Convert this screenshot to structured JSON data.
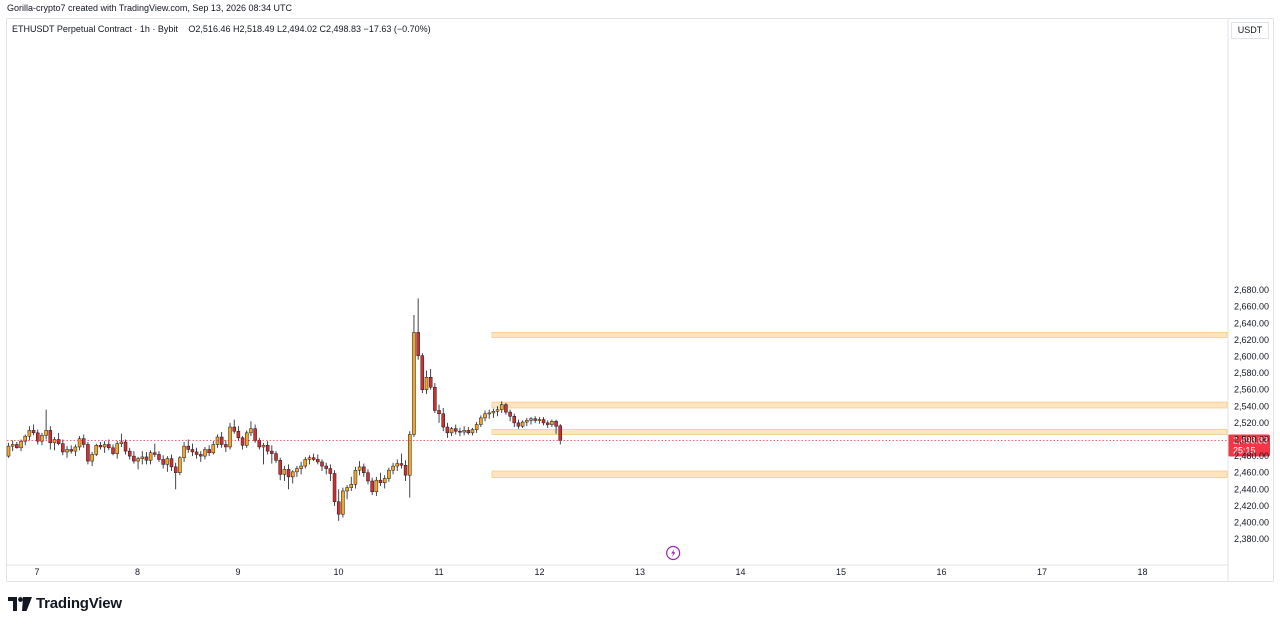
{
  "header": {
    "credit": "Gorilla-crypto7 created with TradingView.com, Sep 13, 2026 08:34 UTC"
  },
  "legend": {
    "symbol": "ETHUSDT Perpetual Contract · 1h · Bybit",
    "ohlc": "O2,516.46  H2,518.49  L2,494.02  C2,498.83  −17.63 (−0.70%)"
  },
  "axis_unit": "USDT",
  "branding": {
    "logo_text": "TradingView",
    "logo_icon": "tradingview-logo-icon"
  },
  "colors": {
    "up_body": "#f5a623",
    "down_body": "#d32f2f",
    "wick": "#131722",
    "zone_fill": "#fde5c0",
    "zone_stroke": "#f7c98a",
    "last_price_bg": "#f23645",
    "price_line": "#f23645",
    "news_icon": "#9c27b0"
  },
  "chart_data": {
    "type": "candlestick",
    "title": "",
    "symbol": "ETHUSDT Perpetual Contract",
    "interval": "1h",
    "exchange": "Bybit",
    "ylim": [
      2370,
      2690
    ],
    "y_ticks": [
      "2,380.00",
      "2,400.00",
      "2,420.00",
      "2,440.00",
      "2,460.00",
      "2,480.00",
      "2,500.00",
      "2,520.00",
      "2,540.00",
      "2,560.00",
      "2,580.00",
      "2,600.00",
      "2,620.00",
      "2,640.00",
      "2,660.00",
      "2,680.00"
    ],
    "y_tick_values": [
      2380,
      2400,
      2420,
      2440,
      2460,
      2480,
      2500,
      2520,
      2540,
      2560,
      2580,
      2600,
      2620,
      2640,
      2660,
      2680
    ],
    "x_ticks": [
      "7",
      "8",
      "9",
      "10",
      "11",
      "12",
      "13",
      "14",
      "15",
      "16",
      "17",
      "18"
    ],
    "x_tick_days": [
      7,
      8,
      9,
      10,
      11,
      12,
      13,
      14,
      15,
      16,
      17,
      18
    ],
    "x_range_days": [
      6.7,
      18.87
    ],
    "last_price": {
      "label": "2,498.83",
      "value": 2498.83,
      "countdown": "25:15"
    },
    "zones": [
      {
        "low": 2623,
        "high": 2629
      },
      {
        "low": 2538,
        "high": 2545
      },
      {
        "low": 2506,
        "high": 2512
      },
      {
        "low": 2454,
        "high": 2462
      }
    ],
    "news_marker_day": 13.33,
    "news_icon": "lightning-icon",
    "candles": [
      [
        2480,
        2496,
        2478,
        2492
      ],
      [
        2492,
        2499,
        2486,
        2494
      ],
      [
        2494,
        2497,
        2489,
        2490
      ],
      [
        2490,
        2500,
        2486,
        2498
      ],
      [
        2498,
        2506,
        2493,
        2504
      ],
      [
        2504,
        2516,
        2499,
        2511
      ],
      [
        2511,
        2518,
        2505,
        2508
      ],
      [
        2508,
        2512,
        2494,
        2498
      ],
      [
        2498,
        2508,
        2493,
        2505
      ],
      [
        2505,
        2536,
        2500,
        2511
      ],
      [
        2511,
        2516,
        2488,
        2496
      ],
      [
        2496,
        2503,
        2487,
        2500
      ],
      [
        2500,
        2508,
        2493,
        2495
      ],
      [
        2495,
        2500,
        2481,
        2485
      ],
      [
        2485,
        2492,
        2478,
        2488
      ],
      [
        2488,
        2493,
        2483,
        2486
      ],
      [
        2486,
        2494,
        2480,
        2491
      ],
      [
        2491,
        2504,
        2487,
        2501
      ],
      [
        2501,
        2506,
        2490,
        2494
      ],
      [
        2494,
        2497,
        2470,
        2474
      ],
      [
        2474,
        2485,
        2468,
        2482
      ],
      [
        2482,
        2495,
        2480,
        2493
      ],
      [
        2493,
        2497,
        2488,
        2491
      ],
      [
        2491,
        2498,
        2484,
        2494
      ],
      [
        2494,
        2500,
        2487,
        2490
      ],
      [
        2490,
        2494,
        2481,
        2483
      ],
      [
        2483,
        2498,
        2477,
        2495
      ],
      [
        2495,
        2507,
        2491,
        2497
      ],
      [
        2497,
        2500,
        2482,
        2486
      ],
      [
        2486,
        2490,
        2476,
        2480
      ],
      [
        2480,
        2486,
        2471,
        2474
      ],
      [
        2474,
        2479,
        2464,
        2477
      ],
      [
        2477,
        2486,
        2470,
        2479
      ],
      [
        2479,
        2485,
        2470,
        2475
      ],
      [
        2475,
        2487,
        2470,
        2484
      ],
      [
        2484,
        2495,
        2479,
        2482
      ],
      [
        2482,
        2486,
        2473,
        2476
      ],
      [
        2476,
        2481,
        2465,
        2470
      ],
      [
        2470,
        2480,
        2461,
        2477
      ],
      [
        2477,
        2482,
        2462,
        2467
      ],
      [
        2467,
        2472,
        2440,
        2460
      ],
      [
        2460,
        2480,
        2457,
        2478
      ],
      [
        2478,
        2497,
        2473,
        2492
      ],
      [
        2492,
        2500,
        2484,
        2488
      ],
      [
        2488,
        2495,
        2480,
        2485
      ],
      [
        2485,
        2490,
        2477,
        2482
      ],
      [
        2482,
        2486,
        2473,
        2480
      ],
      [
        2480,
        2491,
        2476,
        2488
      ],
      [
        2488,
        2493,
        2480,
        2484
      ],
      [
        2484,
        2498,
        2482,
        2494
      ],
      [
        2494,
        2506,
        2490,
        2503
      ],
      [
        2503,
        2509,
        2490,
        2494
      ],
      [
        2494,
        2499,
        2485,
        2491
      ],
      [
        2491,
        2520,
        2488,
        2515
      ],
      [
        2515,
        2524,
        2507,
        2510
      ],
      [
        2510,
        2516,
        2498,
        2502
      ],
      [
        2502,
        2504,
        2488,
        2493
      ],
      [
        2493,
        2511,
        2490,
        2508
      ],
      [
        2508,
        2522,
        2504,
        2513
      ],
      [
        2513,
        2518,
        2496,
        2499
      ],
      [
        2499,
        2502,
        2488,
        2491
      ],
      [
        2491,
        2496,
        2470,
        2493
      ],
      [
        2493,
        2498,
        2482,
        2486
      ],
      [
        2486,
        2493,
        2471,
        2483
      ],
      [
        2483,
        2486,
        2472,
        2475
      ],
      [
        2475,
        2478,
        2451,
        2458
      ],
      [
        2458,
        2468,
        2450,
        2464
      ],
      [
        2464,
        2470,
        2440,
        2455
      ],
      [
        2455,
        2463,
        2447,
        2461
      ],
      [
        2461,
        2468,
        2455,
        2465
      ],
      [
        2465,
        2473,
        2458,
        2468
      ],
      [
        2468,
        2479,
        2465,
        2476
      ],
      [
        2476,
        2481,
        2470,
        2478
      ],
      [
        2478,
        2483,
        2474,
        2476
      ],
      [
        2476,
        2482,
        2470,
        2473
      ],
      [
        2473,
        2476,
        2462,
        2468
      ],
      [
        2468,
        2472,
        2458,
        2465
      ],
      [
        2465,
        2470,
        2450,
        2459
      ],
      [
        2459,
        2463,
        2420,
        2425
      ],
      [
        2425,
        2440,
        2402,
        2410
      ],
      [
        2410,
        2442,
        2406,
        2438
      ],
      [
        2438,
        2445,
        2428,
        2442
      ],
      [
        2442,
        2455,
        2438,
        2446
      ],
      [
        2446,
        2467,
        2441,
        2463
      ],
      [
        2463,
        2474,
        2457,
        2467
      ],
      [
        2467,
        2471,
        2455,
        2460
      ],
      [
        2460,
        2464,
        2446,
        2450
      ],
      [
        2450,
        2454,
        2433,
        2437
      ],
      [
        2437,
        2455,
        2432,
        2451
      ],
      [
        2451,
        2460,
        2444,
        2448
      ],
      [
        2448,
        2457,
        2441,
        2453
      ],
      [
        2453,
        2466,
        2449,
        2463
      ],
      [
        2463,
        2472,
        2458,
        2468
      ],
      [
        2468,
        2476,
        2462,
        2471
      ],
      [
        2471,
        2483,
        2465,
        2469
      ],
      [
        2469,
        2475,
        2450,
        2457
      ],
      [
        2457,
        2510,
        2430,
        2506
      ],
      [
        2506,
        2650,
        2503,
        2629
      ],
      [
        2629,
        2670,
        2596,
        2601
      ],
      [
        2601,
        2604,
        2556,
        2560
      ],
      [
        2560,
        2583,
        2555,
        2575
      ],
      [
        2575,
        2585,
        2560,
        2563
      ],
      [
        2563,
        2568,
        2532,
        2535
      ],
      [
        2535,
        2542,
        2520,
        2531
      ],
      [
        2531,
        2538,
        2510,
        2515
      ],
      [
        2515,
        2520,
        2502,
        2508
      ],
      [
        2508,
        2515,
        2504,
        2513
      ],
      [
        2513,
        2518,
        2506,
        2510
      ],
      [
        2510,
        2514,
        2504,
        2509
      ],
      [
        2509,
        2516,
        2505,
        2511
      ],
      [
        2511,
        2515,
        2506,
        2508
      ],
      [
        2508,
        2514,
        2505,
        2512
      ],
      [
        2512,
        2521,
        2508,
        2518
      ],
      [
        2518,
        2529,
        2515,
        2526
      ],
      [
        2526,
        2535,
        2522,
        2531
      ],
      [
        2531,
        2536,
        2525,
        2532
      ],
      [
        2532,
        2537,
        2526,
        2534
      ],
      [
        2534,
        2540,
        2528,
        2536
      ],
      [
        2536,
        2546,
        2532,
        2542
      ],
      [
        2542,
        2544,
        2530,
        2533
      ],
      [
        2533,
        2536,
        2522,
        2528
      ],
      [
        2528,
        2531,
        2515,
        2520
      ],
      [
        2520,
        2524,
        2513,
        2516
      ],
      [
        2516,
        2523,
        2514,
        2521
      ],
      [
        2521,
        2526,
        2516,
        2523
      ],
      [
        2523,
        2527,
        2518,
        2525
      ],
      [
        2525,
        2528,
        2520,
        2523
      ],
      [
        2523,
        2527,
        2519,
        2524
      ],
      [
        2524,
        2527,
        2517,
        2520
      ],
      [
        2520,
        2523,
        2514,
        2518
      ],
      [
        2518,
        2524,
        2515,
        2522
      ],
      [
        2522,
        2524,
        2507,
        2516
      ],
      [
        2516.46,
        2518.49,
        2494.02,
        2498.83
      ]
    ]
  }
}
